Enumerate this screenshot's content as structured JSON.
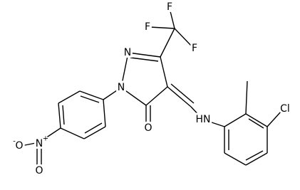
{
  "atoms": [
    "F",
    "F",
    "F",
    "N",
    "N",
    "O",
    "HN",
    "Cl",
    "N",
    "+",
    "O",
    "-",
    "O"
  ]
}
